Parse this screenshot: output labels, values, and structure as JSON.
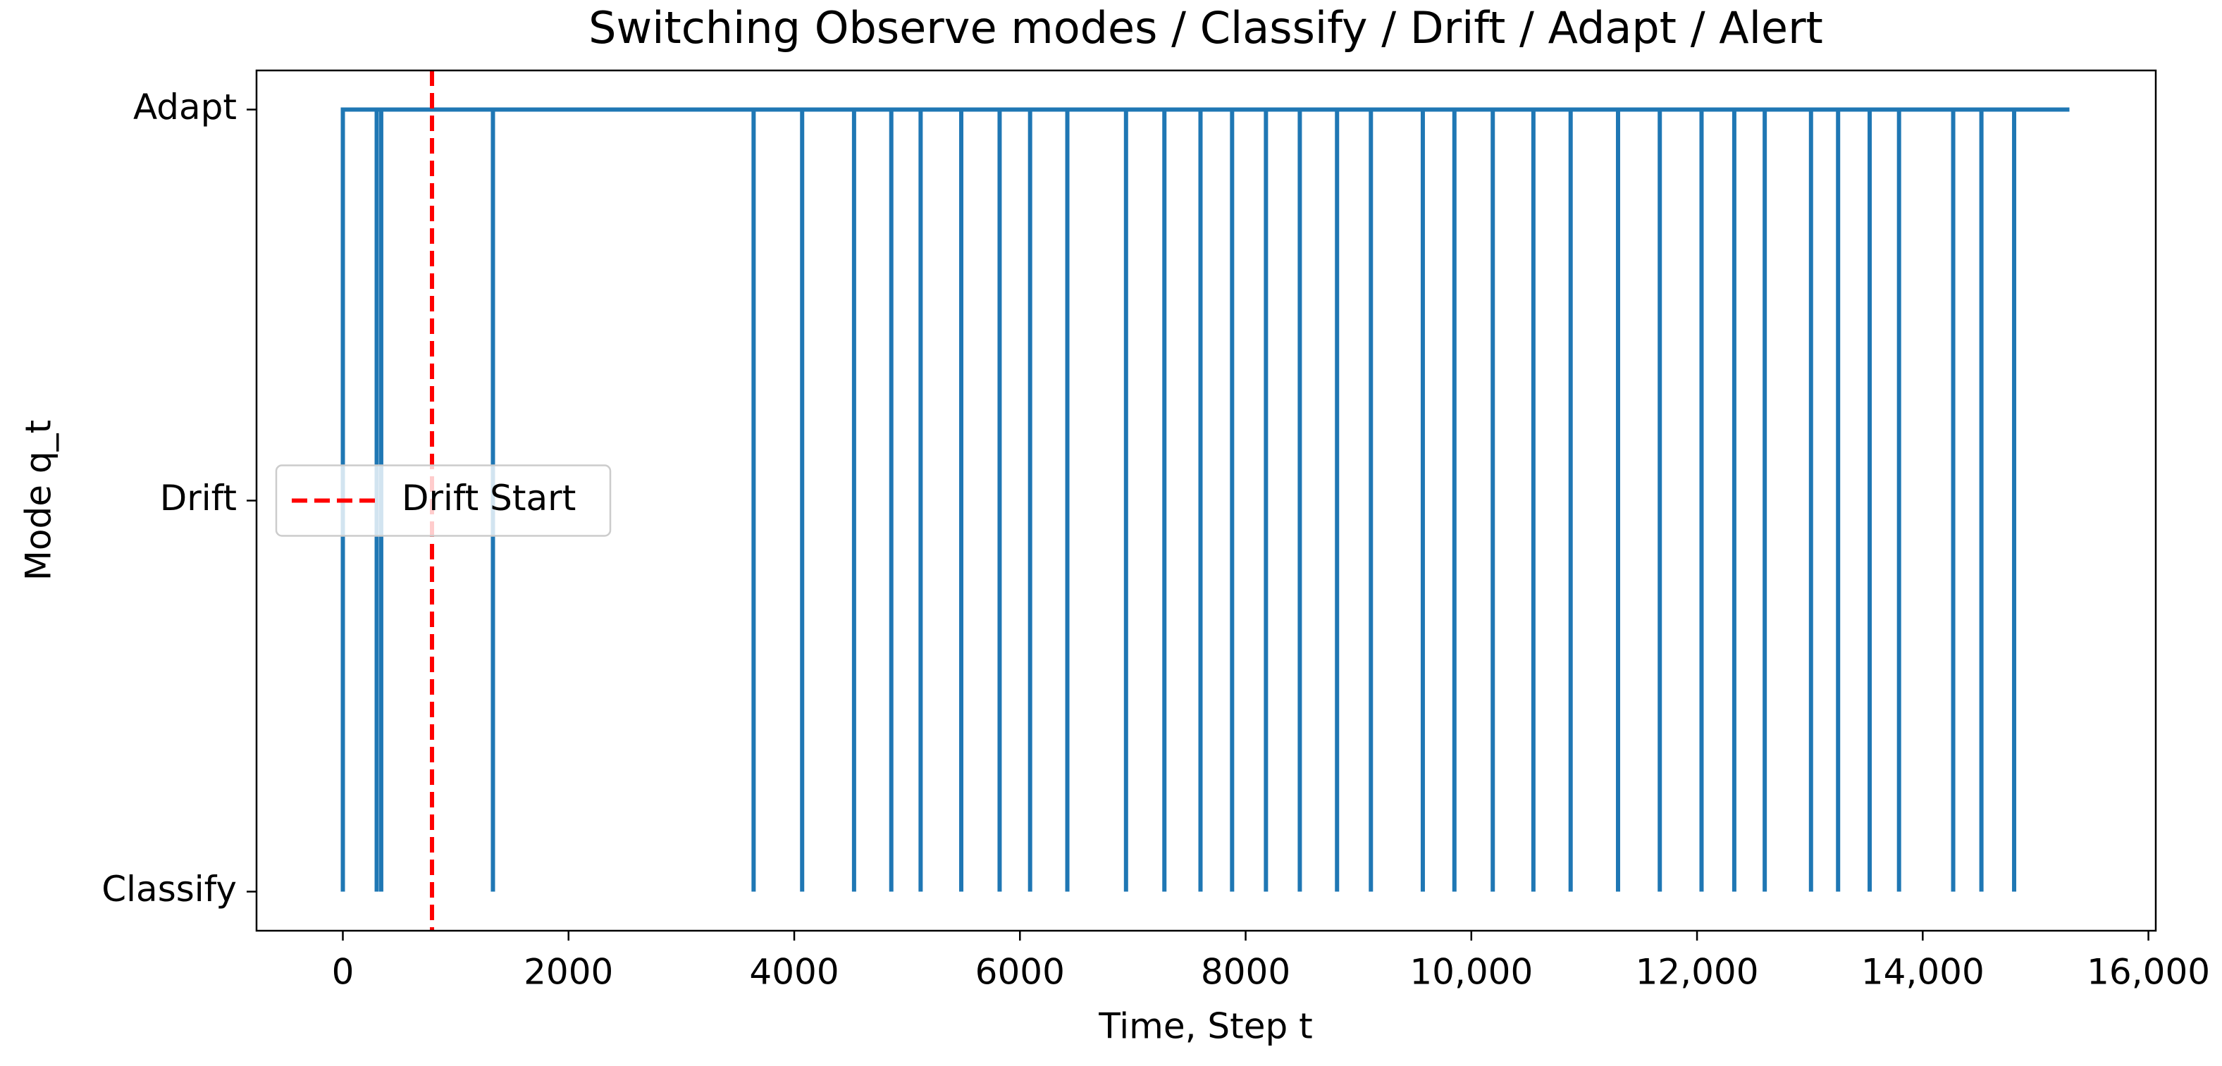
{
  "chart_data": {
    "type": "line",
    "title": "Switching Observe modes / Classify / Drift / Adapt / Alert",
    "xlabel": "Time, Step t",
    "ylabel": "Mode q_t",
    "xlim": [
      -765,
      16065
    ],
    "ylim": [
      -0.1,
      2.1
    ],
    "xticks": [
      0,
      2000,
      4000,
      6000,
      8000,
      {
        "value": 10000,
        "label": "10,000"
      },
      {
        "value": 12000,
        "label": "12,000"
      },
      {
        "value": 14000,
        "label": "14,000"
      },
      {
        "value": 16000,
        "label": "16,000"
      }
    ],
    "yticks": [
      {
        "value": 0,
        "label": "Classify"
      },
      {
        "value": 1,
        "label": "Drift"
      },
      {
        "value": 2,
        "label": "Adapt"
      }
    ],
    "series": [
      {
        "color": "#1f77b4",
        "x": [
          0,
          0,
          300,
          300,
          300,
          340,
          340,
          340,
          1330,
          1330,
          1330,
          3640,
          3640,
          3640,
          4070,
          4070,
          4070,
          4530,
          4530,
          4530,
          4860,
          4860,
          4860,
          5120,
          5120,
          5120,
          5480,
          5480,
          5480,
          5820,
          5820,
          5820,
          6090,
          6090,
          6090,
          6420,
          6420,
          6420,
          6940,
          6940,
          6940,
          7280,
          7280,
          7280,
          7600,
          7600,
          7600,
          7880,
          7880,
          7880,
          8180,
          8180,
          8180,
          8480,
          8480,
          8480,
          8810,
          8810,
          8810,
          9110,
          9110,
          9110,
          9570,
          9570,
          9570,
          9850,
          9850,
          9850,
          10190,
          10190,
          10190,
          10550,
          10550,
          10550,
          10880,
          10880,
          10880,
          11300,
          11300,
          11300,
          11670,
          11670,
          11670,
          12040,
          12040,
          12040,
          12330,
          12330,
          12330,
          12600,
          12600,
          12600,
          13010,
          13010,
          13010,
          13250,
          13250,
          13250,
          13530,
          13530,
          13530,
          13790,
          13790,
          13790,
          14270,
          14270,
          14270,
          14520,
          14520,
          14520,
          14810,
          14810,
          14810,
          15300
        ],
        "values": [
          0,
          2,
          2,
          0,
          2,
          2,
          0,
          2,
          2,
          0,
          2,
          2,
          0,
          2,
          2,
          0,
          2,
          2,
          0,
          2,
          2,
          0,
          2,
          2,
          0,
          2,
          2,
          0,
          2,
          2,
          0,
          2,
          2,
          0,
          2,
          2,
          0,
          2,
          2,
          0,
          2,
          2,
          0,
          2,
          2,
          0,
          2,
          2,
          0,
          2,
          2,
          0,
          2,
          2,
          0,
          2,
          2,
          0,
          2,
          2,
          0,
          2,
          2,
          0,
          2,
          2,
          0,
          2,
          2,
          0,
          2,
          2,
          0,
          2,
          2,
          0,
          2,
          2,
          0,
          2,
          2,
          0,
          2,
          2,
          0,
          2,
          2,
          0,
          2,
          2,
          0,
          2,
          2,
          0,
          2,
          2,
          0,
          2,
          2,
          0,
          2,
          2,
          0,
          2,
          2,
          0,
          2,
          2,
          0,
          2,
          2,
          0,
          2,
          2
        ]
      }
    ],
    "vline": {
      "name": "Drift Start",
      "x": 790,
      "color": "#ff0000"
    },
    "legend": "center left"
  }
}
